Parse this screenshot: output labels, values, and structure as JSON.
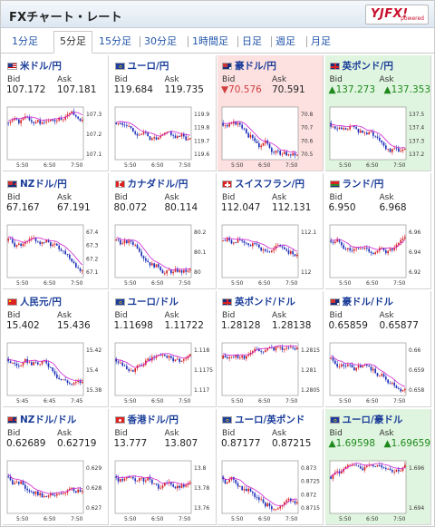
{
  "title": "FXチャート・レート",
  "logo": {
    "main": "YJFX!",
    "sub": "powered"
  },
  "tabs": [
    {
      "label": "1分足",
      "active": false
    },
    {
      "label": "5分足",
      "active": true
    },
    {
      "label": "15分足",
      "active": false
    },
    {
      "label": "30分足",
      "active": false
    },
    {
      "label": "1時間足",
      "active": false
    },
    {
      "label": "日足",
      "active": false
    },
    {
      "label": "週足",
      "active": false
    },
    {
      "label": "月足",
      "active": false
    }
  ],
  "labels": {
    "bid": "Bid",
    "ask": "Ask"
  },
  "colors": {
    "up": "#d62020",
    "down": "#1c2fb8",
    "ma": "#d020d0",
    "ma2": "#3a9a3a",
    "pink_bg": "#fde0e0",
    "green_bg": "#e0f5df"
  },
  "pairs": [
    {
      "name": "米ドル/円",
      "flag": "us",
      "bid": "107.172",
      "ask": "107.181",
      "dir": "",
      "bg": "",
      "ticks": [
        "107.3",
        "107.2",
        "107.1"
      ],
      "xticks": [
        "5:50",
        "6:50",
        "7:50"
      ],
      "seed": 1,
      "trend": -0.2
    },
    {
      "name": "ユーロ/円",
      "flag": "eu",
      "bid": "119.684",
      "ask": "119.735",
      "dir": "",
      "bg": "",
      "ticks": [
        "119.9",
        "119.8",
        "119.7",
        "119.6"
      ],
      "xticks": [
        "5:50",
        "6:50",
        "7:50"
      ],
      "seed": 2,
      "trend": -0.3
    },
    {
      "name": "豪ドル/円",
      "flag": "au",
      "bid": "70.576",
      "ask": "70.591",
      "dir": "down",
      "bg": "red",
      "ticks": [
        "70.8",
        "70.7",
        "70.6",
        "70.5"
      ],
      "xticks": [
        "5:50",
        "6:50",
        "7:50"
      ],
      "seed": 3,
      "trend": -0.4
    },
    {
      "name": "英ポンド/円",
      "flag": "uk",
      "bid": "137.273",
      "ask": "137.353",
      "dir": "up",
      "bg": "green",
      "ticks": [
        "137.5",
        "137.4",
        "137.3",
        "137.2"
      ],
      "xticks": [
        "5:50",
        "6:50",
        "7:50"
      ],
      "seed": 4,
      "trend": -0.3
    },
    {
      "name": "NZドル/円",
      "flag": "nz",
      "bid": "67.167",
      "ask": "67.191",
      "dir": "",
      "bg": "",
      "ticks": [
        "67.4",
        "67.3",
        "67.2",
        "67.1"
      ],
      "xticks": [
        "5:50",
        "6:50",
        "7:50"
      ],
      "seed": 5,
      "trend": -0.5
    },
    {
      "name": "カナダドル/円",
      "flag": "ca",
      "bid": "80.072",
      "ask": "80.114",
      "dir": "",
      "bg": "",
      "ticks": [
        "80.2",
        "80.1",
        "80"
      ],
      "xticks": [
        "5:50",
        "6:50",
        "7:50"
      ],
      "seed": 6,
      "trend": -0.3
    },
    {
      "name": "スイスフラン/円",
      "flag": "ch",
      "bid": "112.047",
      "ask": "112.131",
      "dir": "",
      "bg": "",
      "ticks": [
        "112.1",
        "112"
      ],
      "xticks": [
        "5:50",
        "6:50",
        "7:50"
      ],
      "seed": 7,
      "trend": -0.1
    },
    {
      "name": "ランド/円",
      "flag": "za",
      "bid": "6.950",
      "ask": "6.968",
      "dir": "",
      "bg": "",
      "ticks": [
        "6.96",
        "6.94",
        "6.92"
      ],
      "xticks": [
        "5:50",
        "6:50",
        "7:50"
      ],
      "seed": 8,
      "trend": -0.2
    },
    {
      "name": "人民元/円",
      "flag": "cn",
      "bid": "15.402",
      "ask": "15.436",
      "dir": "",
      "bg": "",
      "ticks": [
        "15.42",
        "15.4",
        "15.38"
      ],
      "xticks": [
        "5:45",
        "6:45",
        "7:45"
      ],
      "seed": 9,
      "trend": -0.3
    },
    {
      "name": "ユーロ/ドル",
      "flag": "eu",
      "bid": "1.11698",
      "ask": "1.11722",
      "dir": "",
      "bg": "",
      "ticks": [
        "1.118",
        "1.1175",
        "1.117"
      ],
      "xticks": [
        "5:50",
        "6:50",
        "7:50"
      ],
      "seed": 10,
      "trend": 0.2
    },
    {
      "name": "英ポンド/ドル",
      "flag": "uk",
      "bid": "1.28128",
      "ask": "1.28138",
      "dir": "",
      "bg": "",
      "ticks": [
        "1.2815",
        "1.281",
        "1.2805"
      ],
      "xticks": [
        "5:50",
        "6:50",
        "7:50"
      ],
      "seed": 11,
      "trend": 0.1
    },
    {
      "name": "豪ドル/ドル",
      "flag": "au",
      "bid": "0.65859",
      "ask": "0.65877",
      "dir": "",
      "bg": "",
      "ticks": [
        "0.66",
        "0.659",
        "0.658"
      ],
      "xticks": [
        "5:50",
        "6:50",
        "7:50"
      ],
      "seed": 12,
      "trend": -0.4
    },
    {
      "name": "NZドル/ドル",
      "flag": "nz",
      "bid": "0.62689",
      "ask": "0.62719",
      "dir": "",
      "bg": "",
      "ticks": [
        "0.629",
        "0.628",
        "0.627"
      ],
      "xticks": [
        "5:50",
        "6:50",
        "7:50"
      ],
      "seed": 13,
      "trend": -0.4
    },
    {
      "name": "香港ドル/円",
      "flag": "hk",
      "bid": "13.777",
      "ask": "13.807",
      "dir": "",
      "bg": "",
      "ticks": [
        "13.8",
        "13.78",
        "13.76"
      ],
      "xticks": [
        "5:50",
        "6:50",
        "7:50"
      ],
      "seed": 14,
      "trend": -0.3
    },
    {
      "name": "ユーロ/英ポンド",
      "flag": "eu",
      "bid": "0.87177",
      "ask": "0.87215",
      "dir": "",
      "bg": "",
      "ticks": [
        "0.873",
        "0.8725",
        "0.872",
        "0.8715"
      ],
      "xticks": [
        "5:50",
        "6:50",
        "7:50"
      ],
      "seed": 15,
      "trend": -0.4
    },
    {
      "name": "ユーロ/豪ドル",
      "flag": "eu",
      "bid": "1.69598",
      "ask": "1.69659",
      "dir": "up",
      "bg": "green",
      "ticks": [
        "1.696",
        "1.694"
      ],
      "xticks": [
        "5:50",
        "6:50",
        "7:50"
      ],
      "seed": 16,
      "trend": 0.5
    }
  ]
}
